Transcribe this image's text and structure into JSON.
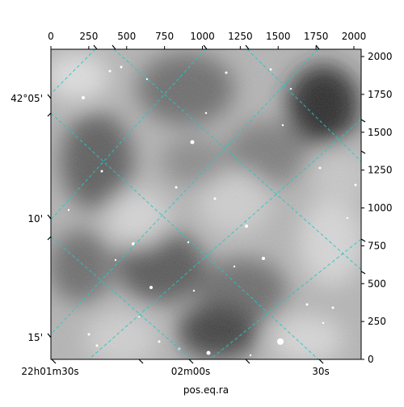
{
  "chart_data": {
    "type": "heatmap",
    "colormap": "grayscale",
    "xlabel": "pos.eq.ra",
    "ylabel": "",
    "pixel_x_ticks": {
      "labels": [
        "0",
        "250",
        "500",
        "750",
        "1000",
        "1250",
        "1500",
        "1750",
        "2000"
      ],
      "values": [
        0,
        250,
        500,
        750,
        1000,
        1250,
        1500,
        1750,
        2000
      ],
      "position": "top"
    },
    "pixel_y_ticks": {
      "labels": [
        "0",
        "250",
        "500",
        "750",
        "1000",
        "1250",
        "1500",
        "1750",
        "2000"
      ],
      "values": [
        0,
        250,
        500,
        750,
        1000,
        1250,
        1500,
        1750,
        2000
      ],
      "position": "right"
    },
    "ra_ticks": {
      "labels": [
        "22h01m30s",
        "02m00s",
        "30s"
      ],
      "position": "bottom"
    },
    "dec_ticks": {
      "labels": [
        "42°05'",
        "10'",
        "15'"
      ],
      "position": "left"
    },
    "pixel_range": {
      "x": [
        0,
        2048
      ],
      "y": [
        0,
        2048
      ]
    },
    "coordinate_grid": true,
    "grid_color": "#25c7c7",
    "grid_style": "dashed"
  }
}
